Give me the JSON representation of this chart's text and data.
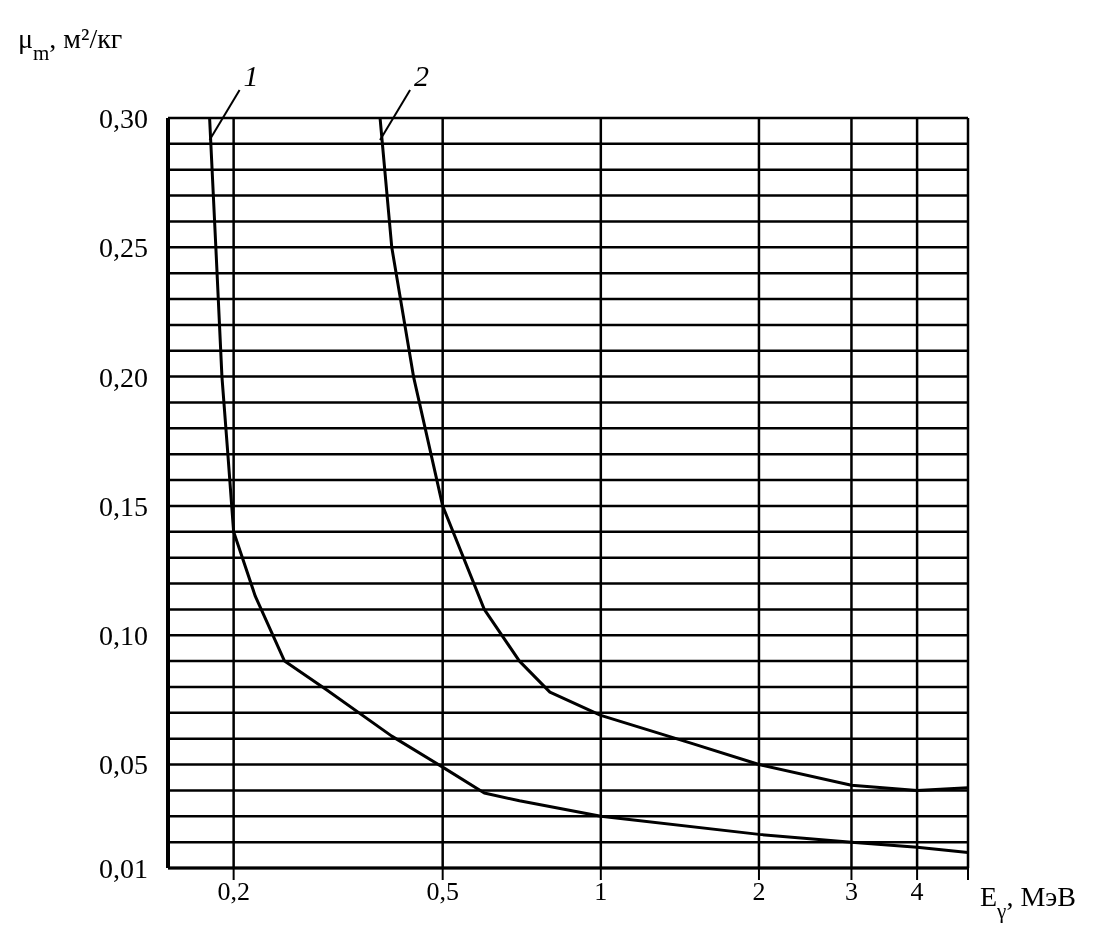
{
  "chart_data": {
    "type": "line",
    "xlabel": "E$_{γ}$, МэВ",
    "ylabel": "μ$_{m}$, м²/кг",
    "xlim": [
      0.15,
      5
    ],
    "ylim": [
      0.01,
      0.3
    ],
    "log": "x",
    "grid": true,
    "marker": "none",
    "line_style": "solid",
    "xticks": [
      {
        "value": 0.2,
        "label": "0,2"
      },
      {
        "value": 0.5,
        "label": "0,5"
      },
      {
        "value": 1,
        "label": "1"
      },
      {
        "value": 2,
        "label": "2"
      },
      {
        "value": 3,
        "label": "3"
      },
      {
        "value": 4,
        "label": "4"
      },
      {
        "value": 5,
        "label": null
      }
    ],
    "yticks": [
      {
        "value": 0.01,
        "label": "0,01"
      },
      {
        "value": 0.02,
        "label": null
      },
      {
        "value": 0.03,
        "label": null
      },
      {
        "value": 0.04,
        "label": null
      },
      {
        "value": 0.05,
        "label": "0,05"
      },
      {
        "value": 0.06,
        "label": null
      },
      {
        "value": 0.07,
        "label": null
      },
      {
        "value": 0.08,
        "label": null
      },
      {
        "value": 0.09,
        "label": null
      },
      {
        "value": 0.1,
        "label": "0,10"
      },
      {
        "value": 0.11,
        "label": null
      },
      {
        "value": 0.12,
        "label": null
      },
      {
        "value": 0.13,
        "label": null
      },
      {
        "value": 0.14,
        "label": null
      },
      {
        "value": 0.15,
        "label": "0,15"
      },
      {
        "value": 0.16,
        "label": null
      },
      {
        "value": 0.17,
        "label": null
      },
      {
        "value": 0.18,
        "label": null
      },
      {
        "value": 0.19,
        "label": null
      },
      {
        "value": 0.2,
        "label": "0,20"
      },
      {
        "value": 0.21,
        "label": null
      },
      {
        "value": 0.22,
        "label": null
      },
      {
        "value": 0.23,
        "label": null
      },
      {
        "value": 0.24,
        "label": null
      },
      {
        "value": 0.25,
        "label": "0,25"
      },
      {
        "value": 0.26,
        "label": null
      },
      {
        "value": 0.27,
        "label": null
      },
      {
        "value": 0.28,
        "label": null
      },
      {
        "value": 0.29,
        "label": null
      },
      {
        "value": 0.3,
        "label": "0,30"
      }
    ],
    "series": [
      {
        "color": "#000000",
        "x": [
          0.18,
          0.185,
          0.19,
          0.195,
          0.2,
          0.22,
          0.25,
          0.3,
          0.4,
          0.5,
          0.6,
          0.7,
          1,
          2,
          3,
          4,
          5
        ],
        "values": [
          0.3,
          0.25,
          0.2,
          0.17,
          0.14,
          0.115,
          0.09,
          0.079,
          0.061,
          0.049,
          0.039,
          0.036,
          0.03,
          0.023,
          0.02,
          0.018,
          0.016
        ]
      },
      {
        "color": "#000000",
        "x": [
          0.38,
          0.4,
          0.44,
          0.5,
          0.6,
          0.7,
          0.8,
          1,
          1.5,
          2,
          3,
          4,
          5
        ],
        "values": [
          0.3,
          0.25,
          0.2,
          0.15,
          0.11,
          0.09,
          0.078,
          0.069,
          0.058,
          0.05,
          0.042,
          0.04,
          0.041
        ]
      }
    ],
    "annotations": [
      {
        "text": "1",
        "x": 0.18,
        "y": 0.3
      },
      {
        "text": "2",
        "x": 0.38,
        "y": 0.3
      }
    ]
  }
}
